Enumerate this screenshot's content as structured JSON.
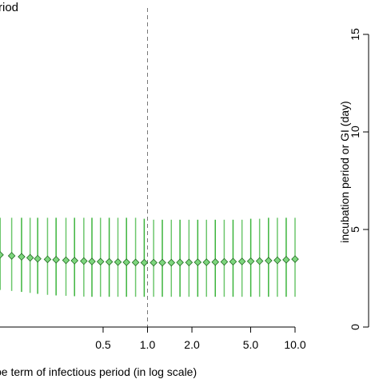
{
  "chart_data": {
    "type": "scatter",
    "title": "riod",
    "xlabel": "pe term of infectious period (in log scale)",
    "ylabel": "incubation period or GI (day)",
    "x_scale": "log",
    "x_ticks": [
      {
        "value": 0.5,
        "label": "0.5"
      },
      {
        "value": 1.0,
        "label": "1.0"
      },
      {
        "value": 2.0,
        "label": "2.0"
      },
      {
        "value": 5.0,
        "label": "5.0"
      },
      {
        "value": 10.0,
        "label": "10.0"
      }
    ],
    "xlim": [
      0.1,
      10.0
    ],
    "y_ticks": [
      {
        "value": 0,
        "label": "0"
      },
      {
        "value": 5,
        "label": "5"
      },
      {
        "value": 10,
        "label": "10"
      },
      {
        "value": 15,
        "label": "15"
      }
    ],
    "ylim": [
      0,
      15
    ],
    "reference_line_x": 1.0,
    "series": [
      {
        "x": [
          0.1,
          0.12,
          0.14,
          0.16,
          0.18,
          0.21,
          0.24,
          0.28,
          0.32,
          0.37,
          0.42,
          0.48,
          0.55,
          0.63,
          0.72,
          0.83,
          0.95,
          1.1,
          1.26,
          1.45,
          1.66,
          1.91,
          2.19,
          2.51,
          2.88,
          3.31,
          3.8,
          4.37,
          5.01,
          5.75,
          6.61,
          7.59,
          8.71,
          10.0
        ],
        "y": [
          3.7,
          3.65,
          3.6,
          3.55,
          3.5,
          3.47,
          3.45,
          3.42,
          3.4,
          3.38,
          3.36,
          3.35,
          3.34,
          3.33,
          3.32,
          3.31,
          3.3,
          3.3,
          3.3,
          3.3,
          3.31,
          3.31,
          3.32,
          3.32,
          3.33,
          3.34,
          3.35,
          3.36,
          3.37,
          3.38,
          3.4,
          3.42,
          3.45,
          3.48
        ],
        "lower": [
          1.9,
          1.85,
          1.8,
          1.75,
          1.7,
          1.65,
          1.62,
          1.6,
          1.58,
          1.56,
          1.55,
          1.55,
          1.55,
          1.55,
          1.55,
          1.55,
          1.55,
          1.55,
          1.55,
          1.55,
          1.55,
          1.55,
          1.55,
          1.55,
          1.55,
          1.55,
          1.55,
          1.55,
          1.55,
          1.55,
          1.55,
          1.55,
          1.55,
          1.55
        ],
        "upper": [
          5.6,
          5.6,
          5.6,
          5.6,
          5.6,
          5.6,
          5.6,
          5.6,
          5.6,
          5.6,
          5.6,
          5.6,
          5.6,
          5.6,
          5.6,
          5.6,
          5.55,
          5.5,
          5.5,
          5.5,
          5.5,
          5.5,
          5.5,
          5.5,
          5.5,
          5.5,
          5.5,
          5.5,
          5.55,
          5.55,
          5.6,
          5.6,
          5.6,
          5.6
        ]
      }
    ],
    "colors": {
      "marker_fill": "#7ed67e",
      "marker_stroke": "#1f6b1f",
      "error_bar": "#3cb43c",
      "reference_line": "#777777",
      "axis": "#000000"
    }
  }
}
